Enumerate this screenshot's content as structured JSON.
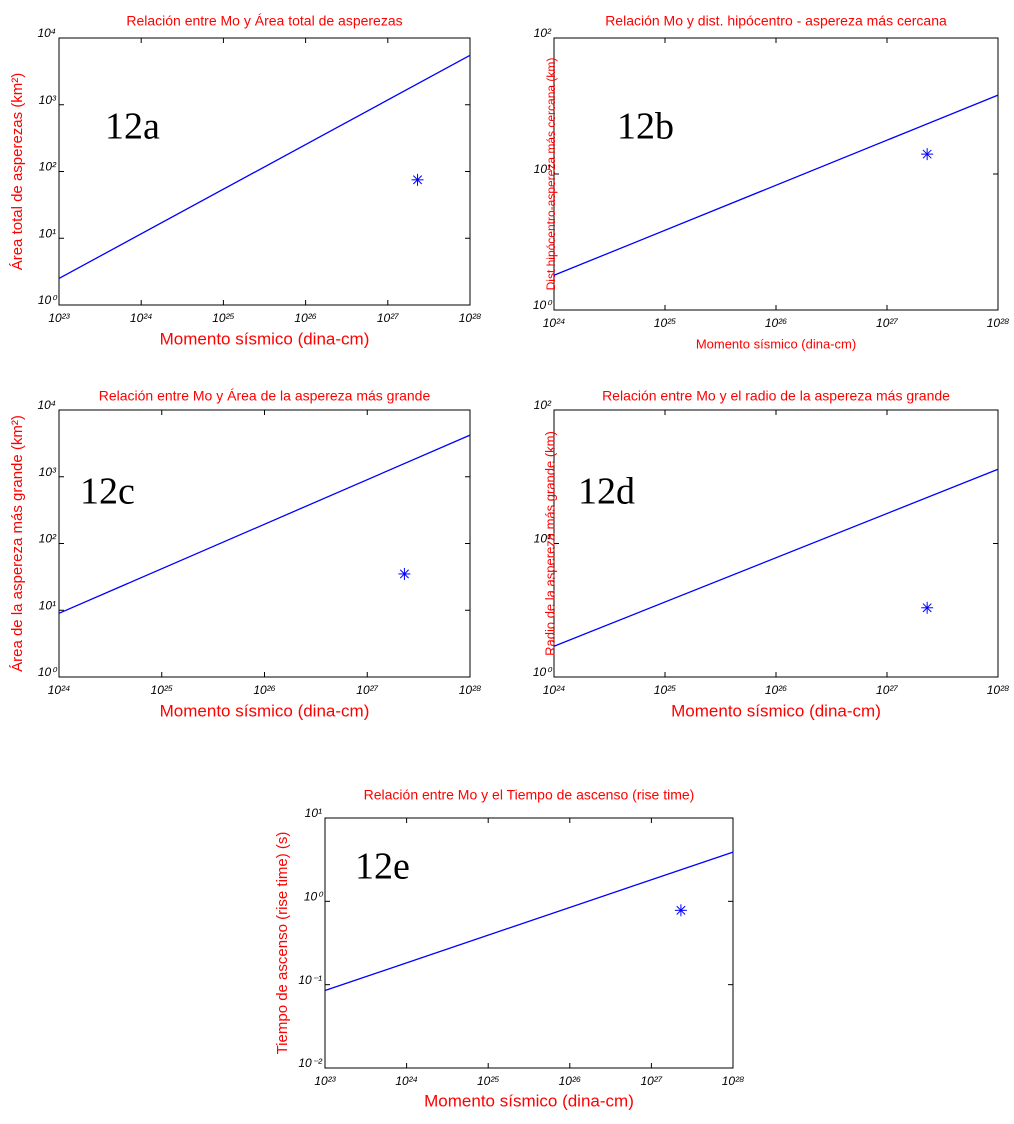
{
  "chart_data": [
    {
      "type": "line",
      "title": "Relación entre Mo y Área total de asperezas",
      "xlabel": "Momento sísmico (dina-cm)",
      "ylabel": "Área total de asperezas (km²)",
      "annotation": "12a",
      "log_x": true,
      "log_y": true,
      "xlim": [
        1e+23,
        1e+28
      ],
      "ylim": [
        1,
        10000
      ],
      "xticks": [
        {
          "value": 1e+23,
          "label": "10²³"
        },
        {
          "value": 1e+24,
          "label": "10²⁴"
        },
        {
          "value": 1e+25,
          "label": "10²⁵"
        },
        {
          "value": 1e+26,
          "label": "10²⁶"
        },
        {
          "value": 1e+27,
          "label": "10²⁷"
        },
        {
          "value": 1e+28,
          "label": "10²⁸"
        }
      ],
      "yticks": [
        {
          "value": 1,
          "label": "10⁰"
        },
        {
          "value": 10,
          "label": "10¹"
        },
        {
          "value": 100,
          "label": "10²"
        },
        {
          "value": 1000,
          "label": "10³"
        },
        {
          "value": 10000,
          "label": "10⁴"
        }
      ],
      "series": [
        {
          "type": "line",
          "color": "#0000ff",
          "x": [
            1e+23,
            1e+28
          ],
          "values": [
            2.5,
            5500
          ]
        },
        {
          "type": "scatter",
          "color": "#0000ff",
          "x": [
            2.3e+27
          ],
          "values": [
            75
          ]
        }
      ]
    },
    {
      "type": "line",
      "title": "Relación Mo y dist. hipócentro - aspereza más cercana",
      "xlabel": "Momento sísmico (dina-cm)",
      "ylabel": "Dist hipócentro-aspereza más cercana (km)",
      "annotation": "12b",
      "log_x": true,
      "log_y": true,
      "xlim": [
        1e+24,
        1e+28
      ],
      "ylim": [
        1,
        100
      ],
      "xticks": [
        {
          "value": 1e+24,
          "label": "10²⁴"
        },
        {
          "value": 1e+25,
          "label": "10²⁵"
        },
        {
          "value": 1e+26,
          "label": "10²⁶"
        },
        {
          "value": 1e+27,
          "label": "10²⁷"
        },
        {
          "value": 1e+28,
          "label": "10²⁸"
        }
      ],
      "yticks": [
        {
          "value": 1,
          "label": "10⁰"
        },
        {
          "value": 10,
          "label": "10¹"
        },
        {
          "value": 100,
          "label": "10²"
        }
      ],
      "series": [
        {
          "type": "line",
          "color": "#0000ff",
          "x": [
            1e+24,
            1e+28
          ],
          "values": [
            1.8,
            38
          ]
        },
        {
          "type": "scatter",
          "color": "#0000ff",
          "x": [
            2.3e+27
          ],
          "values": [
            14
          ]
        }
      ]
    },
    {
      "type": "line",
      "title": "Relación entre Mo y Área de la aspereza más grande",
      "xlabel": "Momento sísmico (dina-cm)",
      "ylabel": "Área de la aspereza más grande (km²)",
      "annotation": "12c",
      "log_x": true,
      "log_y": true,
      "xlim": [
        1e+24,
        1e+28
      ],
      "ylim": [
        1,
        10000
      ],
      "xticks": [
        {
          "value": 1e+24,
          "label": "10²⁴"
        },
        {
          "value": 1e+25,
          "label": "10²⁵"
        },
        {
          "value": 1e+26,
          "label": "10²⁶"
        },
        {
          "value": 1e+27,
          "label": "10²⁷"
        },
        {
          "value": 1e+28,
          "label": "10²⁸"
        }
      ],
      "yticks": [
        {
          "value": 1,
          "label": "10⁰"
        },
        {
          "value": 10,
          "label": "10¹"
        },
        {
          "value": 100,
          "label": "10²"
        },
        {
          "value": 1000,
          "label": "10³"
        },
        {
          "value": 10000,
          "label": "10⁴"
        }
      ],
      "series": [
        {
          "type": "line",
          "color": "#0000ff",
          "x": [
            1e+24,
            1e+28
          ],
          "values": [
            9,
            4200
          ]
        },
        {
          "type": "scatter",
          "color": "#0000ff",
          "x": [
            2.3e+27
          ],
          "values": [
            35
          ]
        }
      ]
    },
    {
      "type": "line",
      "title": "Relación entre Mo y el radio de la aspereza más grande",
      "xlabel": "Momento sísmico (dina-cm)",
      "ylabel": "Radio de la aspereza más grande (km)",
      "annotation": "12d",
      "log_x": true,
      "log_y": true,
      "xlim": [
        1e+24,
        1e+28
      ],
      "ylim": [
        1,
        100
      ],
      "xticks": [
        {
          "value": 1e+24,
          "label": "10²⁴"
        },
        {
          "value": 1e+25,
          "label": "10²⁵"
        },
        {
          "value": 1e+26,
          "label": "10²⁶"
        },
        {
          "value": 1e+27,
          "label": "10²⁷"
        },
        {
          "value": 1e+28,
          "label": "10²⁸"
        }
      ],
      "yticks": [
        {
          "value": 1,
          "label": "10⁰"
        },
        {
          "value": 10,
          "label": "10¹"
        },
        {
          "value": 100,
          "label": "10²"
        }
      ],
      "series": [
        {
          "type": "line",
          "color": "#0000ff",
          "x": [
            1e+24,
            1e+28
          ],
          "values": [
            1.7,
            36
          ]
        },
        {
          "type": "scatter",
          "color": "#0000ff",
          "x": [
            2.3e+27
          ],
          "values": [
            3.3
          ]
        }
      ]
    },
    {
      "type": "line",
      "title": "Relación entre Mo y el Tiempo de ascenso (rise time)",
      "xlabel": "Momento sísmico (dina-cm)",
      "ylabel": "Tiempo de ascenso (rise time) (s)",
      "annotation": "12e",
      "log_x": true,
      "log_y": true,
      "xlim": [
        1e+23,
        1e+28
      ],
      "ylim": [
        0.01,
        10
      ],
      "xticks": [
        {
          "value": 1e+23,
          "label": "10²³"
        },
        {
          "value": 1e+24,
          "label": "10²⁴"
        },
        {
          "value": 1e+25,
          "label": "10²⁵"
        },
        {
          "value": 1e+26,
          "label": "10²⁶"
        },
        {
          "value": 1e+27,
          "label": "10²⁷"
        },
        {
          "value": 1e+28,
          "label": "10²⁸"
        }
      ],
      "yticks": [
        {
          "value": 0.01,
          "label": "10⁻²"
        },
        {
          "value": 0.1,
          "label": "10⁻¹"
        },
        {
          "value": 1,
          "label": "10⁰"
        },
        {
          "value": 10,
          "label": "10¹"
        }
      ],
      "series": [
        {
          "type": "line",
          "color": "#0000ff",
          "x": [
            1e+23,
            1e+28
          ],
          "values": [
            0.085,
            3.9
          ]
        },
        {
          "type": "scatter",
          "color": "#0000ff",
          "x": [
            2.3e+27
          ],
          "values": [
            0.78
          ]
        }
      ]
    }
  ]
}
